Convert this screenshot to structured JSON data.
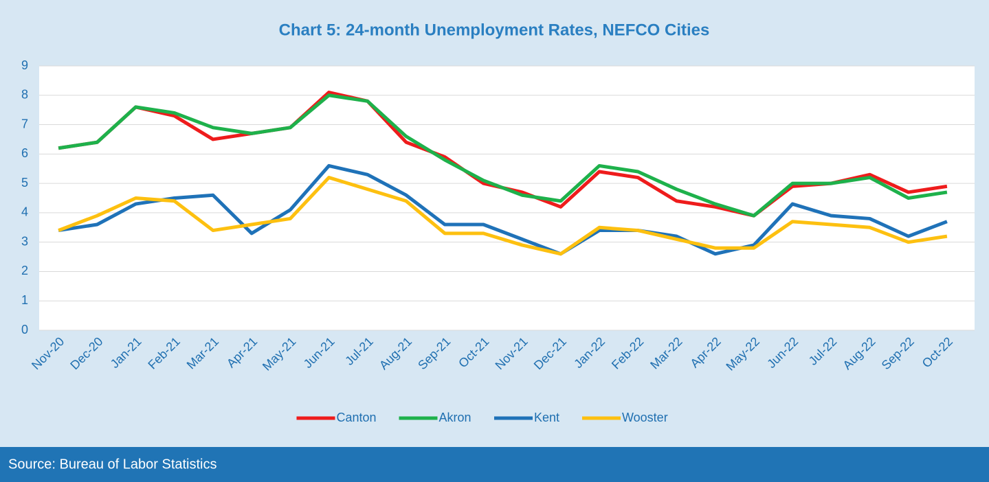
{
  "chart_data": {
    "type": "line",
    "title": "Chart 5: 24-month Unemployment Rates, NEFCO Cities",
    "categories": [
      "Nov-20",
      "Dec-20",
      "Jan-21",
      "Feb-21",
      "Mar-21",
      "Apr-21",
      "May-21",
      "Jun-21",
      "Jul-21",
      "Aug-21",
      "Sep-21",
      "Oct-21",
      "Nov-21",
      "Dec-21",
      "Jan-22",
      "Feb-22",
      "Mar-22",
      "Apr-22",
      "May-22",
      "Jun-22",
      "Jul-22",
      "Aug-22",
      "Sep-22",
      "Oct-22"
    ],
    "series": [
      {
        "name": "Canton",
        "color": "#ee1c1c",
        "values": [
          6.2,
          6.4,
          7.6,
          7.3,
          6.5,
          6.7,
          6.9,
          8.1,
          7.8,
          6.4,
          5.9,
          5.0,
          4.7,
          4.2,
          5.4,
          5.2,
          4.4,
          4.2,
          3.9,
          4.9,
          5.0,
          5.3,
          4.7,
          4.9
        ]
      },
      {
        "name": "Akron",
        "color": "#1eb14b",
        "values": [
          6.2,
          6.4,
          7.6,
          7.4,
          6.9,
          6.7,
          6.9,
          8.0,
          7.8,
          6.6,
          5.8,
          5.1,
          4.6,
          4.4,
          5.6,
          5.4,
          4.8,
          4.3,
          3.9,
          5.0,
          5.0,
          5.2,
          4.5,
          4.7
        ]
      },
      {
        "name": "Kent",
        "color": "#1f72b8",
        "values": [
          3.4,
          3.6,
          4.3,
          4.5,
          4.6,
          3.3,
          4.1,
          5.6,
          5.3,
          4.6,
          3.6,
          3.6,
          3.1,
          2.6,
          3.4,
          3.4,
          3.2,
          2.6,
          2.9,
          4.3,
          3.9,
          3.8,
          3.2,
          3.7
        ]
      },
      {
        "name": "Wooster",
        "color": "#fdc010",
        "values": [
          3.4,
          3.9,
          4.5,
          4.4,
          3.4,
          3.6,
          3.8,
          5.2,
          4.8,
          4.4,
          3.3,
          3.3,
          2.9,
          2.6,
          3.5,
          3.4,
          3.1,
          2.8,
          2.8,
          3.7,
          3.6,
          3.5,
          3.0,
          3.2
        ]
      }
    ],
    "ylim": [
      0,
      9
    ],
    "yticks": [
      0,
      1,
      2,
      3,
      4,
      5,
      6,
      7,
      8,
      9
    ],
    "grid": true,
    "legend": "bottom"
  },
  "source": "Source: Bureau of Labor Statistics"
}
